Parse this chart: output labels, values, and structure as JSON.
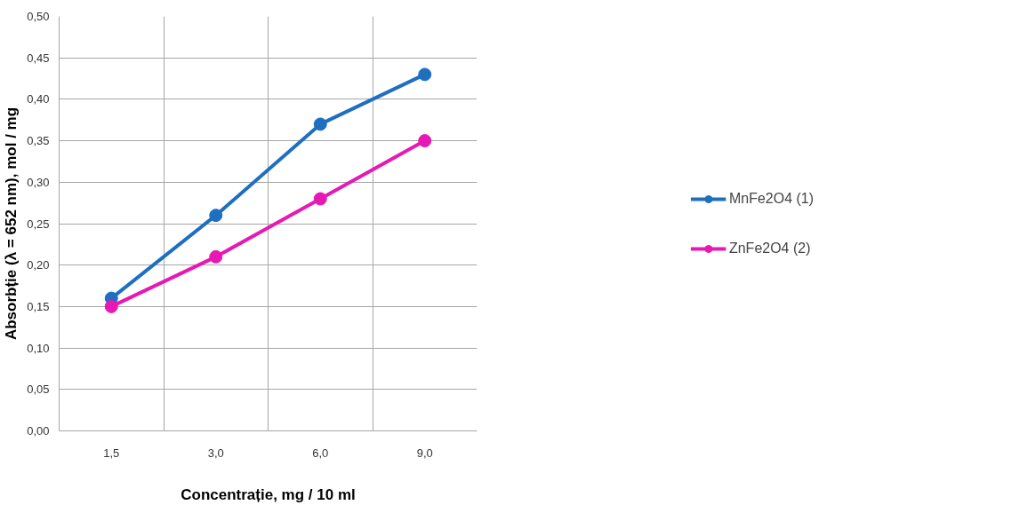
{
  "chart_data": {
    "type": "line",
    "xlabel": "Concentrație, mg / 10 ml",
    "ylabel": "Absorbție (λ = 652 nm), mol / mg",
    "categories": [
      "1,5",
      "3,0",
      "6,0",
      "9,0"
    ],
    "series": [
      {
        "name": "MnFe2O4 (1)",
        "color": "#1f6fc1",
        "values": [
          0.16,
          0.26,
          0.37,
          0.43
        ]
      },
      {
        "name": "ZnFe2O4 (2)",
        "color": "#e619b4",
        "values": [
          0.15,
          0.21,
          0.28,
          0.35
        ]
      }
    ],
    "ylim": [
      0,
      0.5
    ],
    "yticks": [
      {
        "value": 0,
        "label": "0,00"
      },
      {
        "value": 0.05,
        "label": "0,05"
      },
      {
        "value": 0.1,
        "label": "0,10"
      },
      {
        "value": 0.15,
        "label": "0,15"
      },
      {
        "value": 0.2,
        "label": "0,20"
      },
      {
        "value": 0.25,
        "label": "0,25"
      },
      {
        "value": 0.3,
        "label": "0,30"
      },
      {
        "value": 0.35,
        "label": "0,35"
      },
      {
        "value": 0.4,
        "label": "0,40"
      },
      {
        "value": 0.45,
        "label": "0,45"
      },
      {
        "value": 0.5,
        "label": "0,50"
      }
    ],
    "grid": true,
    "legend": "right",
    "marker": "circle",
    "line_style": "solid"
  }
}
